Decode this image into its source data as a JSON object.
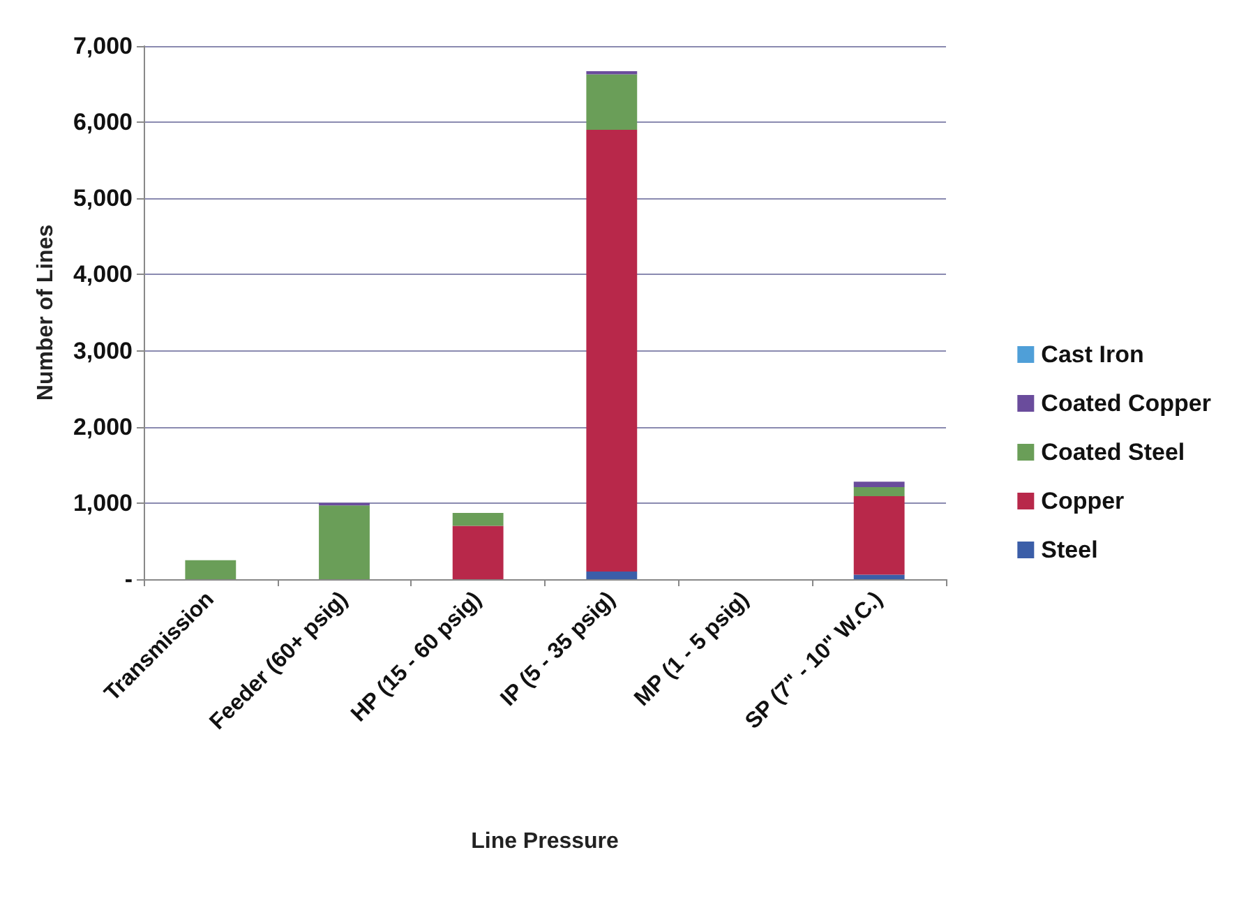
{
  "chart_data": {
    "type": "bar",
    "stacked": true,
    "xlabel": "Line Pressure",
    "ylabel": "Number of Lines",
    "categories": [
      "Transmission",
      "Feeder (60+ psig)",
      "HP (15 - 60 psig)",
      "IP (5 - 35 psig)",
      "MP (1 - 5 psig)",
      "SP (7\" - 10\" W.C.)"
    ],
    "series": [
      {
        "name": "Steel",
        "color": "#3b5ea8",
        "values": [
          0,
          0,
          0,
          100,
          0,
          60
        ]
      },
      {
        "name": "Copper",
        "color": "#b8284a",
        "values": [
          0,
          0,
          700,
          5800,
          0,
          1030
        ]
      },
      {
        "name": "Coated Steel",
        "color": "#6a9e58",
        "values": [
          250,
          970,
          170,
          730,
          0,
          120
        ]
      },
      {
        "name": "Coated Copper",
        "color": "#6a4c9c",
        "values": [
          0,
          30,
          0,
          40,
          0,
          70
        ]
      },
      {
        "name": "Cast Iron",
        "color": "#4f9fd8",
        "values": [
          0,
          0,
          0,
          0,
          0,
          0
        ]
      }
    ],
    "ylim": [
      0,
      7000
    ],
    "yticks": [
      {
        "value": 0,
        "label": "-"
      },
      {
        "value": 1000,
        "label": "1,000"
      },
      {
        "value": 2000,
        "label": "2,000"
      },
      {
        "value": 3000,
        "label": "3,000"
      },
      {
        "value": 4000,
        "label": "4,000"
      },
      {
        "value": 5000,
        "label": "5,000"
      },
      {
        "value": 6000,
        "label": "6,000"
      },
      {
        "value": 7000,
        "label": "7,000"
      }
    ],
    "grid": "y",
    "legend": "right"
  }
}
